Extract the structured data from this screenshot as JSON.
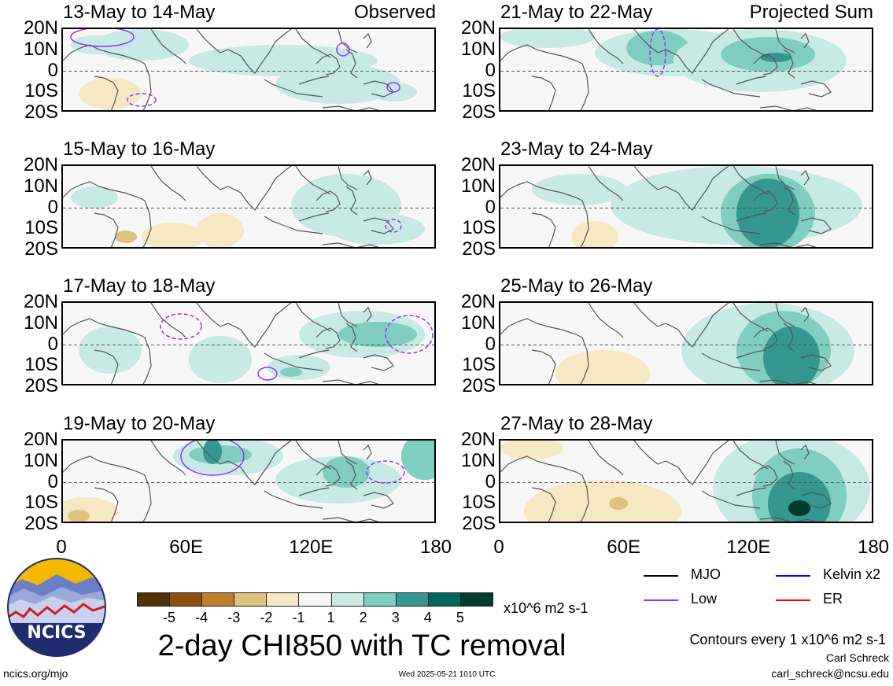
{
  "colors": {
    "neg5": "#543005",
    "neg4": "#8c510a",
    "neg3": "#bf812d",
    "neg2": "#dfc27d",
    "neg1": "#f6e8c3",
    "zero": "#f7f7f7",
    "pos1": "#c7eae5",
    "pos2": "#80cdc1",
    "pos3": "#35978f",
    "pos4": "#01665e",
    "pos5": "#003c30",
    "mjo": "#000000",
    "kelvin": "#0000ff",
    "low": "#9b30ff",
    "er": "#ff0000",
    "coast": "#555555"
  },
  "panels_left": [
    {
      "title": "13-May to 14-May",
      "note": "Observed"
    },
    {
      "title": "15-May to 16-May",
      "note": ""
    },
    {
      "title": "17-May to 18-May",
      "note": ""
    },
    {
      "title": "19-May to 20-May",
      "note": ""
    }
  ],
  "panels_right": [
    {
      "title": "21-May to 22-May",
      "note": "Projected Sum"
    },
    {
      "title": "23-May to 24-May",
      "note": ""
    },
    {
      "title": "25-May to 26-May",
      "note": ""
    },
    {
      "title": "27-May to 28-May",
      "note": ""
    }
  ],
  "lat_ticks": [
    "20N",
    "10N",
    "0",
    "10S",
    "20S"
  ],
  "lon_ticks": [
    "0",
    "60E",
    "120E",
    "180"
  ],
  "colorbar": {
    "labels": [
      "-5",
      "-4",
      "-3",
      "-2",
      "-1",
      "1",
      "2",
      "3",
      "4",
      "5"
    ],
    "units": "x10^6 m2 s-1"
  },
  "legend": {
    "mjo": "MJO",
    "kelvin": "Kelvin x2",
    "low": "Low",
    "er": "ER"
  },
  "main_title": "2-day CHI850 with TC removal",
  "contours_note": "Contours every 1 x10^6 m2 s-1",
  "author": "Carl Schreck",
  "email": "carl_schreck@ncsu.edu",
  "site": "ncics.org/mjo",
  "timestamp": "Wed 2025-05-21 1010 UTC",
  "logo_text": "NCICS"
}
